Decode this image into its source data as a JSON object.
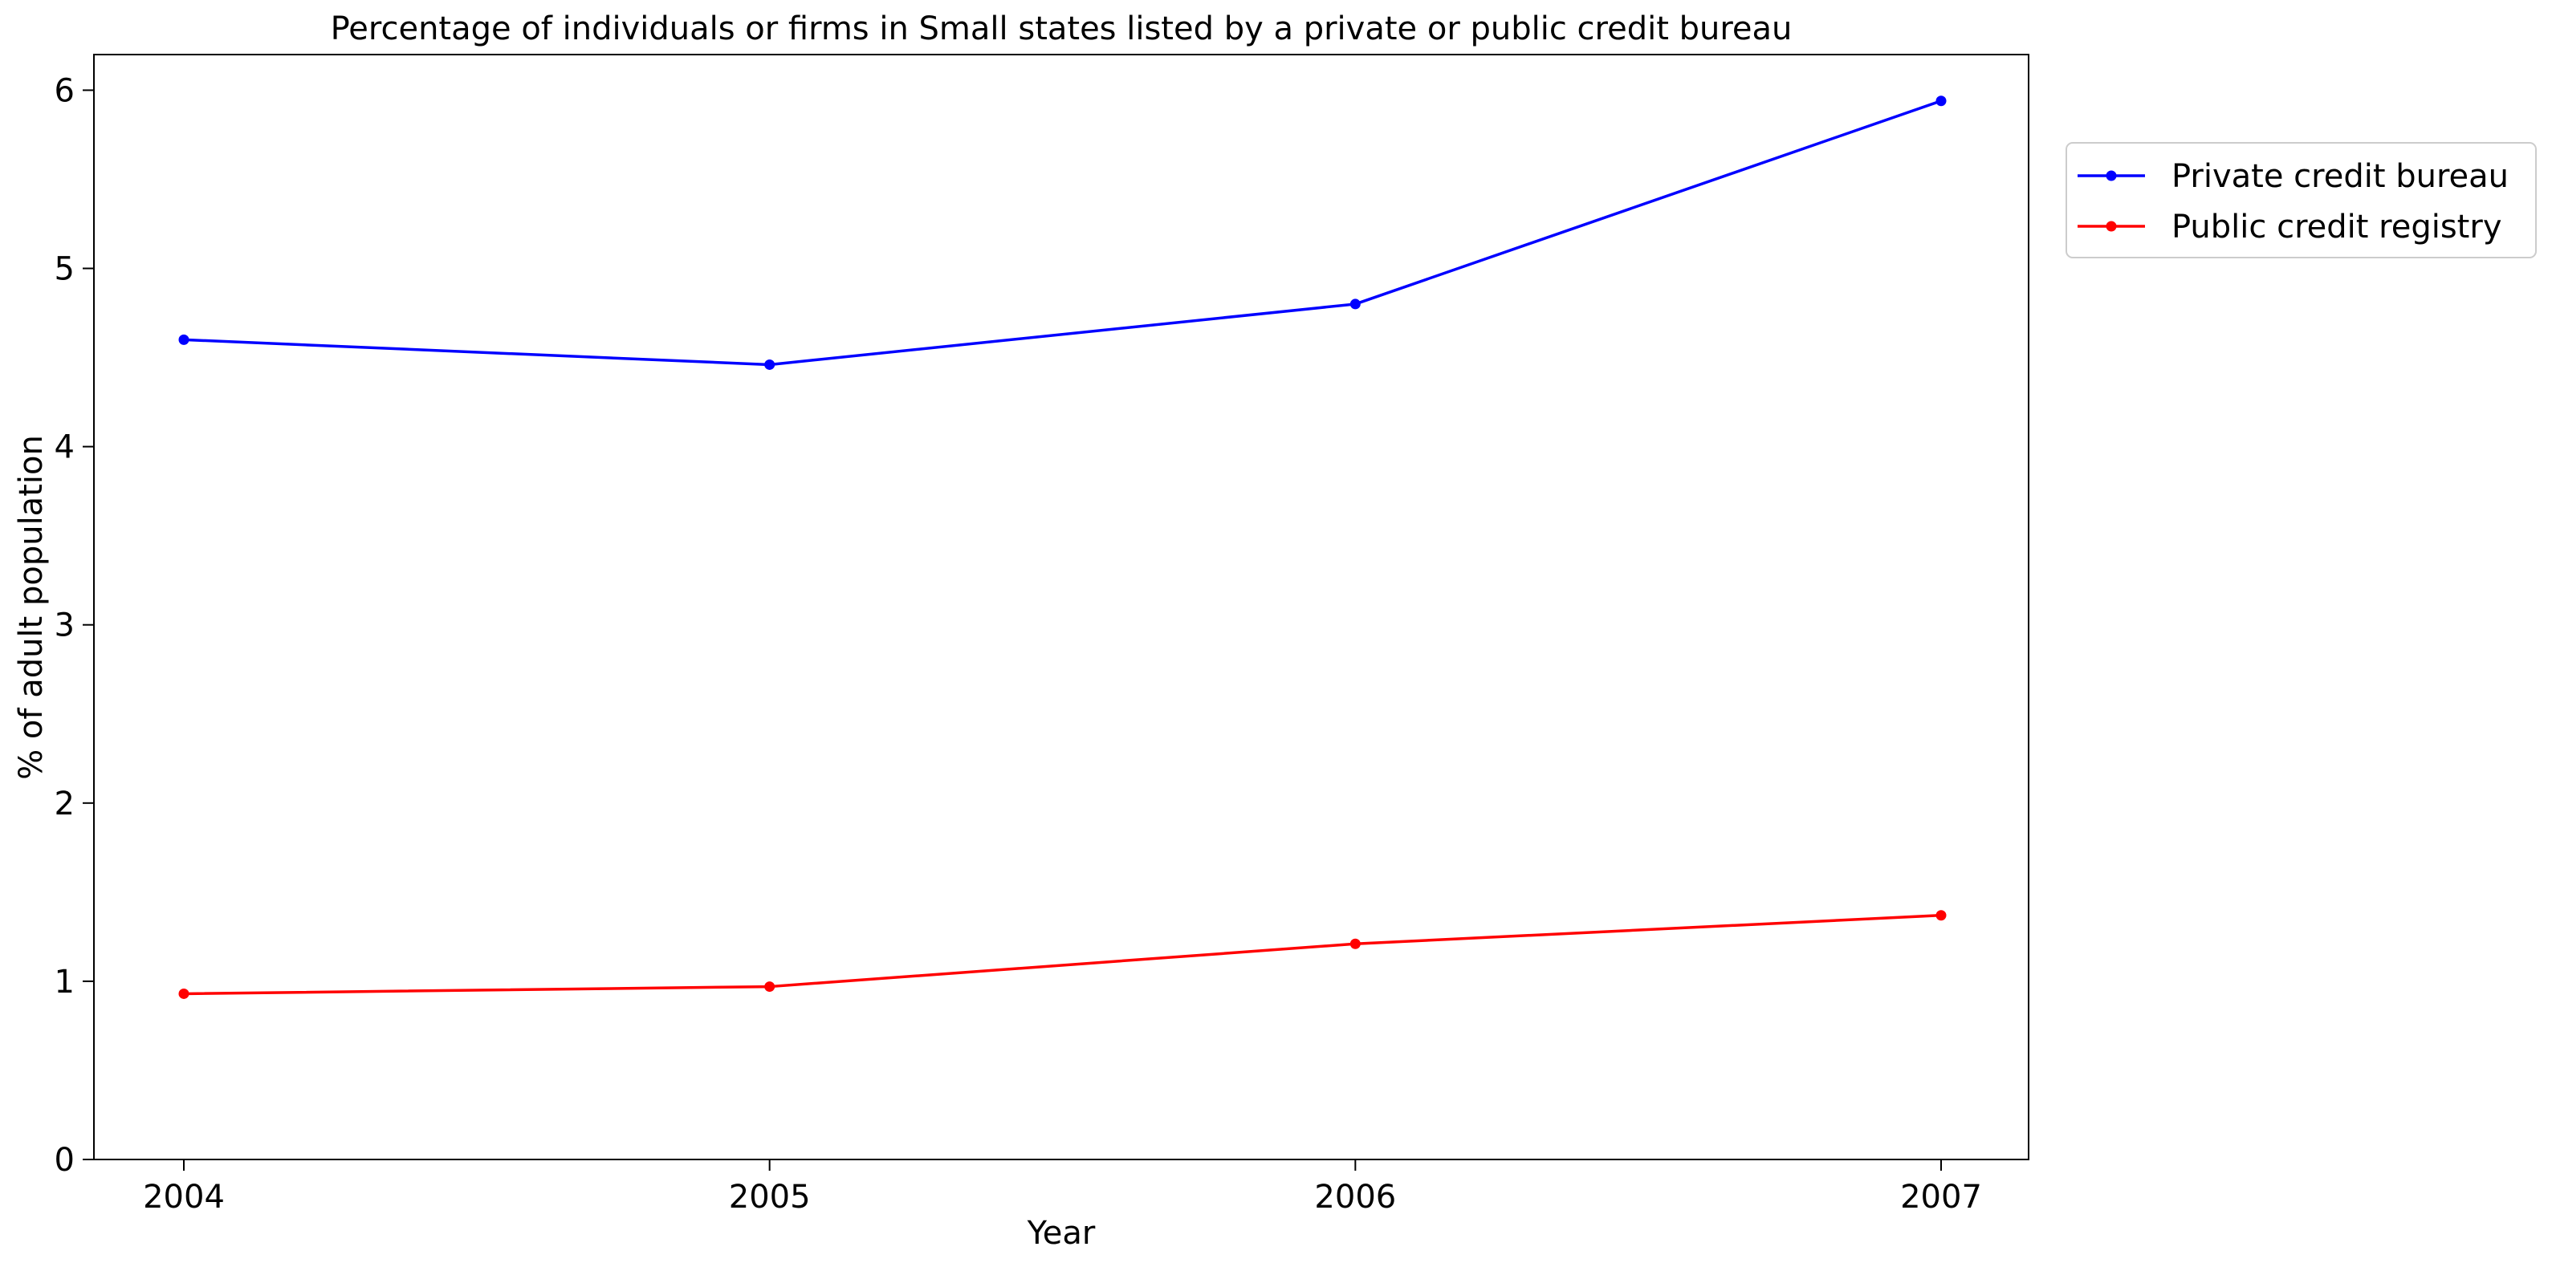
{
  "chart_data": {
    "type": "line",
    "title": "Percentage of individuals or firms in Small states listed by a private or public credit bureau",
    "xlabel": "Year",
    "ylabel": "% of adult population",
    "categories": [
      "2004",
      "2005",
      "2006",
      "2007"
    ],
    "yticks": [
      0,
      1,
      2,
      3,
      4,
      5,
      6
    ],
    "ytick_labels": [
      "0",
      "1",
      "2",
      "3",
      "4",
      "5",
      "6"
    ],
    "ylim": [
      0,
      6.2
    ],
    "grid": false,
    "legend_position": "outside-top-right",
    "series": [
      {
        "name": "Private credit bureau",
        "color": "#0000ff",
        "marker": "circle",
        "values": [
          4.6,
          4.46,
          4.8,
          5.94
        ]
      },
      {
        "name": "Public credit registry",
        "color": "#ff0000",
        "marker": "circle",
        "values": [
          0.93,
          0.97,
          1.21,
          1.37
        ]
      }
    ]
  }
}
